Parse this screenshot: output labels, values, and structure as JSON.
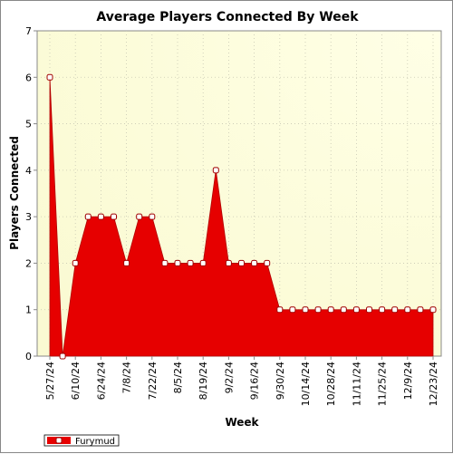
{
  "chart_data": {
    "type": "area",
    "title": "Average Players Connected By Week",
    "xlabel": "Week",
    "ylabel": "Players Connected",
    "ylim": [
      0,
      7
    ],
    "yticks": [
      0,
      1,
      2,
      3,
      4,
      5,
      6,
      7
    ],
    "x_tick_labels": [
      "5/27/24",
      "6/10/24",
      "6/24/24",
      "7/8/24",
      "7/22/24",
      "8/5/24",
      "8/19/24",
      "9/2/24",
      "9/16/24",
      "9/30/24",
      "10/14/24",
      "10/28/24",
      "11/11/24",
      "11/25/24",
      "12/9/24",
      "12/23/24"
    ],
    "x": [
      "5/27/24",
      "6/3/24",
      "6/10/24",
      "6/17/24",
      "6/24/24",
      "7/1/24",
      "7/8/24",
      "7/15/24",
      "7/22/24",
      "7/29/24",
      "8/5/24",
      "8/12/24",
      "8/19/24",
      "8/26/24",
      "9/2/24",
      "9/9/24",
      "9/16/24",
      "9/23/24",
      "9/30/24",
      "10/7/24",
      "10/14/24",
      "10/21/24",
      "10/28/24",
      "11/4/24",
      "11/11/24",
      "11/18/24",
      "11/25/24",
      "12/2/24",
      "12/9/24",
      "12/16/24",
      "12/23/24"
    ],
    "series": [
      {
        "name": "Furymud",
        "color": "#e60000",
        "values": [
          6,
          0,
          2,
          3,
          3,
          3,
          2,
          3,
          3,
          2,
          2,
          2,
          2,
          4,
          2,
          2,
          2,
          2,
          1,
          1,
          1,
          1,
          1,
          1,
          1,
          1,
          1,
          1,
          1,
          1,
          1
        ]
      }
    ],
    "grid": true,
    "legend": "bottom-left",
    "colors": {
      "plot_bg_light": "#ffffe6",
      "plot_bg_edge": "#fafad2",
      "grid": "#c8c8b4",
      "area": "#e60000",
      "marker_fill": "#ffffff",
      "marker_stroke": "#a00000"
    }
  }
}
